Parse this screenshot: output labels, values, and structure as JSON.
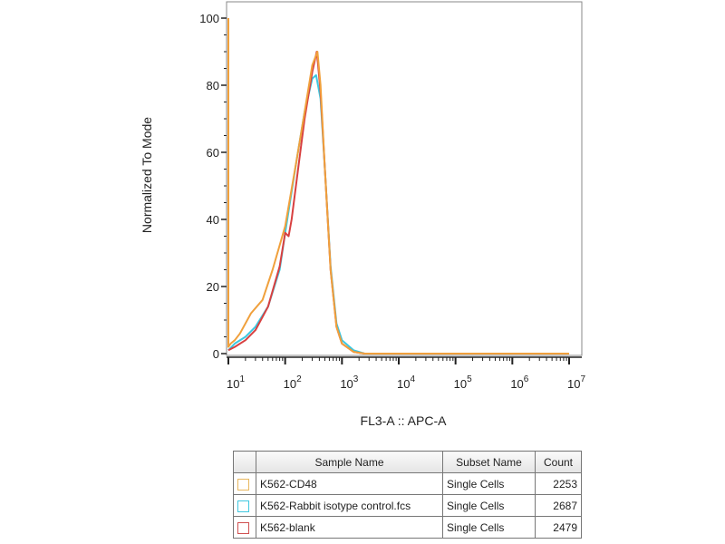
{
  "chart_data": {
    "type": "line",
    "xlabel": "FL3-A :: APC-A",
    "ylabel": "Normalized To Mode",
    "xscale": "log",
    "xlim": [
      10,
      10000000
    ],
    "ylim": [
      0,
      105
    ],
    "xticks": [
      "10^1",
      "10^2",
      "10^3",
      "10^4",
      "10^5",
      "10^6",
      "10^7"
    ],
    "yticks": [
      0,
      20,
      40,
      60,
      80,
      100
    ],
    "grid": false,
    "legend_placement": "bottom table",
    "series": [
      {
        "name": "K562-CD48",
        "color": "#f0a03c",
        "x": [
          10,
          10,
          11,
          13,
          16,
          25,
          40,
          60,
          100,
          160,
          220,
          300,
          370,
          420,
          500,
          630,
          800,
          1000,
          1600,
          2500,
          10000000
        ],
        "y": [
          100,
          2,
          3,
          4,
          6,
          12,
          16,
          25,
          38,
          58,
          72,
          86,
          90,
          80,
          55,
          25,
          8,
          3,
          0.5,
          0,
          0
        ]
      },
      {
        "name": "K562-Rabbit isotype control.fcs",
        "color": "#3cc8e0",
        "x": [
          10,
          13,
          20,
          30,
          50,
          80,
          100,
          160,
          220,
          300,
          350,
          420,
          500,
          630,
          800,
          1000,
          1600,
          2500,
          10000000
        ],
        "y": [
          1,
          3,
          5,
          8,
          14,
          25,
          36,
          58,
          72,
          82,
          83,
          76,
          55,
          26,
          9,
          4,
          1,
          0,
          0
        ]
      },
      {
        "name": "K562-blank",
        "color": "#d84040",
        "x": [
          10,
          13,
          20,
          30,
          50,
          80,
          100,
          115,
          130,
          160,
          220,
          300,
          360,
          380,
          420,
          500,
          630,
          800,
          1000,
          1600,
          2500,
          10000000
        ],
        "y": [
          1,
          2,
          4,
          7,
          14,
          26,
          36,
          35,
          40,
          52,
          70,
          84,
          90,
          86,
          78,
          55,
          25,
          8,
          3,
          0.5,
          0,
          0
        ]
      }
    ]
  },
  "table": {
    "headers": [
      "Sample Name",
      "Subset Name",
      "Count"
    ],
    "rows": [
      {
        "sample": "K562-CD48",
        "subset": "Single Cells",
        "count": "2253",
        "color": "#e8b860"
      },
      {
        "sample": "K562-Rabbit isotype control.fcs",
        "subset": "Single Cells",
        "count": "2687",
        "color": "#40c8e0"
      },
      {
        "sample": "K562-blank",
        "subset": "Single Cells",
        "count": "2479",
        "color": "#d05050"
      }
    ]
  }
}
